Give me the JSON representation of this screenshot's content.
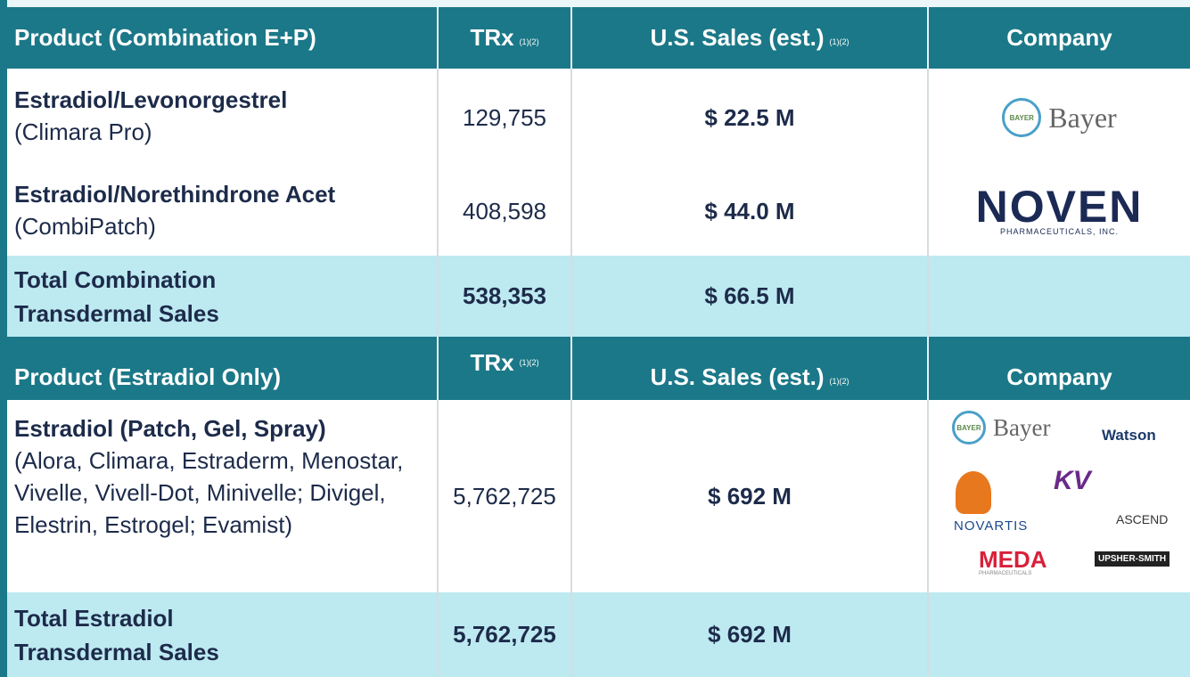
{
  "sections": [
    {
      "header": {
        "product": "Product (Combination E+P)",
        "trx": "TRx",
        "trx_note": "(1)(2)",
        "sales": "U.S. Sales (est.)",
        "sales_note": "(1)(2)",
        "company": "Company"
      },
      "rows": [
        {
          "product": "Estradiol/Levonorgestrel",
          "brands": "(Climara Pro)",
          "trx": "129,755",
          "sales": "$ 22.5 M"
        },
        {
          "product": "Estradiol/Norethindrone Acet",
          "brands": "(CombiPatch)",
          "trx": "408,598",
          "sales": "$ 44.0 M"
        }
      ],
      "total": {
        "label": "Total Combination Transdermal Sales",
        "trx": "538,353",
        "sales": "$ 66.5 M"
      }
    },
    {
      "header": {
        "product": "Product (Estradiol Only)",
        "trx": "TRx",
        "trx_note": "(1)(2)",
        "sales": "U.S. Sales (est.)",
        "sales_note": "(1)(2)",
        "company": "Company"
      },
      "rows": [
        {
          "product": "Estradiol (Patch, Gel, Spray)",
          "brands": "(Alora, Climara, Estraderm, Menostar, Vivelle, Vivell-Dot, Minivelle; Divigel, Elestrin, Estrogel; Evamist)",
          "trx": "5,762,725",
          "sales": "$ 692 M"
        }
      ],
      "total": {
        "label": "Total Estradiol Transdermal Sales",
        "trx": "5,762,725",
        "sales": "$ 692 M"
      }
    }
  ],
  "logos": {
    "bayer": "Bayer",
    "bayer_mark": "BAYER",
    "noven": "NOVEN",
    "noven_sub": "PHARMACEUTICALS, INC.",
    "watson": "Watson",
    "novartis": "NOVARTIS",
    "kv": "KV",
    "ascend": "ASCEND",
    "meda": "MEDA",
    "meda_sub": "PHARMACEUTICALS",
    "upsher": "UPSHER-SMITH"
  }
}
